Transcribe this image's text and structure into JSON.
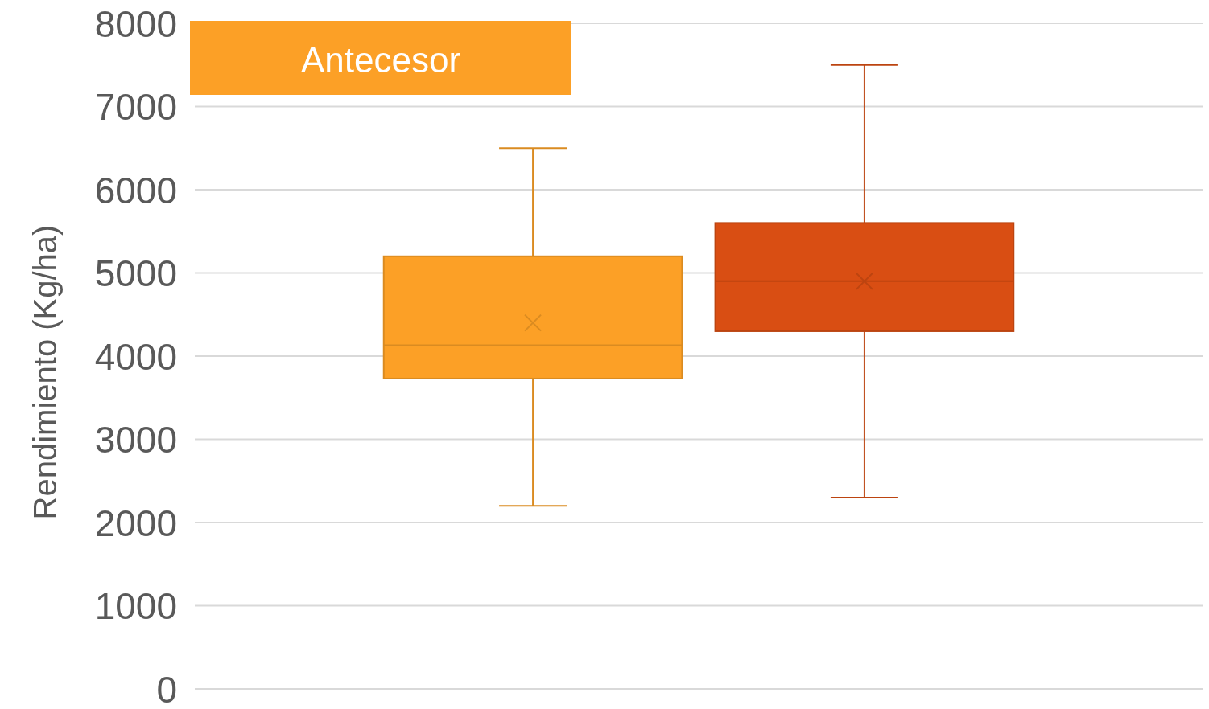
{
  "chart_data": {
    "type": "box",
    "title": "Antecesor",
    "ylabel": "Rendimiento (Kg/ha)",
    "categories": [
      null
    ],
    "series": [
      {
        "color": "#fca026",
        "boxes": [
          {
            "low": 2200,
            "q1": 3730,
            "median": 4130,
            "q3": 5200,
            "high": 6500,
            "mean": 4400
          }
        ]
      },
      {
        "color": "#d94e13",
        "boxes": [
          {
            "low": 2300,
            "q1": 4300,
            "median": 4900,
            "q3": 5600,
            "high": 7500,
            "mean": 4900
          }
        ]
      }
    ],
    "ylim": [
      0,
      8000
    ],
    "yticks": [
      0,
      1000,
      2000,
      3000,
      4000,
      5000,
      6000,
      7000,
      8000
    ],
    "grid": "y",
    "tick_labels": "y",
    "marker": "cross"
  }
}
